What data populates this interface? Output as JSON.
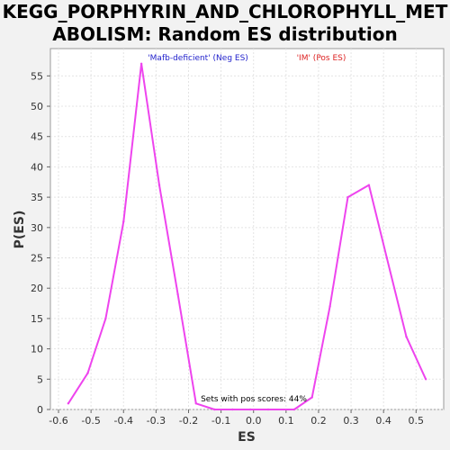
{
  "chart_data": {
    "type": "line",
    "title": "KEGG_PORPHYRIN_AND_CHLOROPHYLL_MET\nABOLISM: Random ES distribution",
    "xlabel": "ES",
    "ylabel": "P(ES)",
    "xlim": [
      -0.625,
      0.585
    ],
    "ylim": [
      0,
      59.5
    ],
    "xticks": [
      "-0.6",
      "-0.5",
      "-0.4",
      "-0.3",
      "-0.2",
      "-0.1",
      "0.0",
      "0.1",
      "0.2",
      "0.3",
      "0.4",
      "0.5"
    ],
    "yticks": [
      "0",
      "5",
      "10",
      "15",
      "20",
      "25",
      "30",
      "35",
      "40",
      "45",
      "50",
      "55"
    ],
    "grid": true,
    "legend": [
      {
        "label": "'Mafb-deficient' (Neg ES)",
        "color": "#2222cc"
      },
      {
        "label": "'IM' (Pos ES)",
        "color": "#dd2222"
      }
    ],
    "annotation": "Sets with pos scores: 44%",
    "line_color": "#ee44ee",
    "series": [
      {
        "x": [
          -0.57,
          -0.51,
          -0.455,
          -0.4,
          -0.345,
          -0.29,
          -0.233,
          -0.177,
          -0.12,
          -0.065,
          -0.01,
          0.045,
          0.125,
          0.18,
          0.235,
          0.29,
          0.355,
          0.41,
          0.47,
          0.53
        ],
        "y": [
          1,
          6,
          15,
          31,
          57,
          37,
          19,
          1,
          0,
          0,
          0,
          0,
          0,
          2,
          17,
          35,
          37,
          25,
          12,
          5
        ]
      }
    ]
  }
}
